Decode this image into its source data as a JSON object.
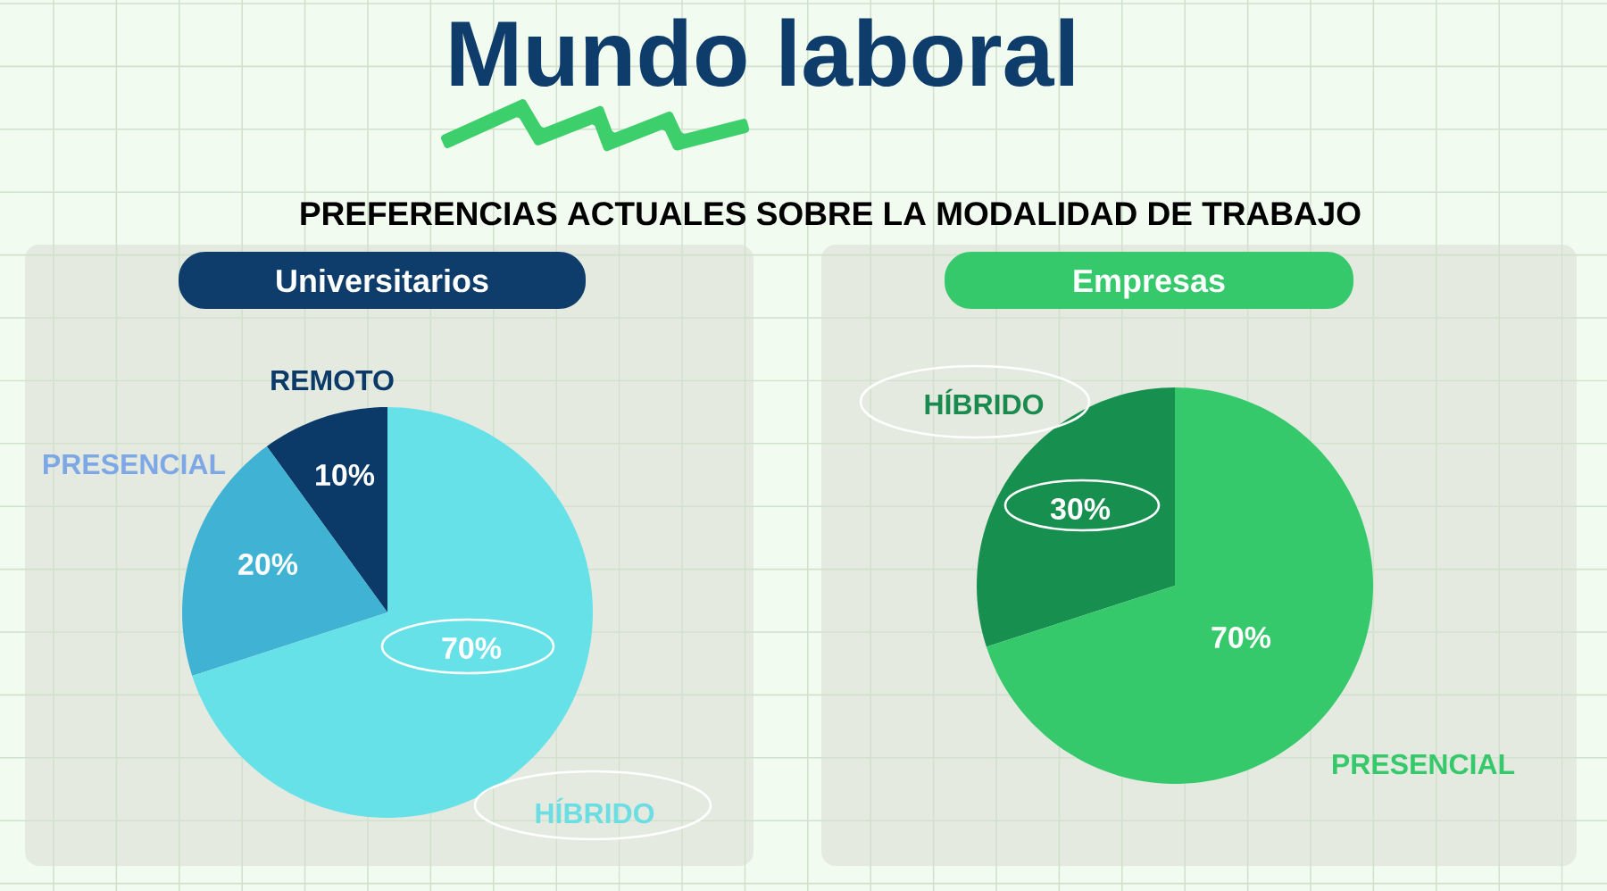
{
  "chart_data": [
    {
      "type": "other",
      "title": "Mundo laboral",
      "subtitle": "PREFERENCIAS ACTUALES SOBRE LA MODALIDAD DE TRABAJO"
    },
    {
      "type": "pie",
      "title": "Universitarios",
      "categories": [
        "REMOTO",
        "PRESENCIAL",
        "HÍBRIDO"
      ],
      "values": [
        10,
        20,
        70
      ],
      "colors": [
        "#0b3a69",
        "#40b2d3",
        "#67e1e8"
      ],
      "value_labels": [
        "10%",
        "20%",
        "70%"
      ]
    },
    {
      "type": "pie",
      "title": "Empresas",
      "categories": [
        "HÍBRIDO",
        "PRESENCIAL"
      ],
      "values": [
        30,
        70
      ],
      "colors": [
        "#178f4f",
        "#36c96b"
      ],
      "value_labels": [
        "30%",
        "70%"
      ]
    }
  ]
}
